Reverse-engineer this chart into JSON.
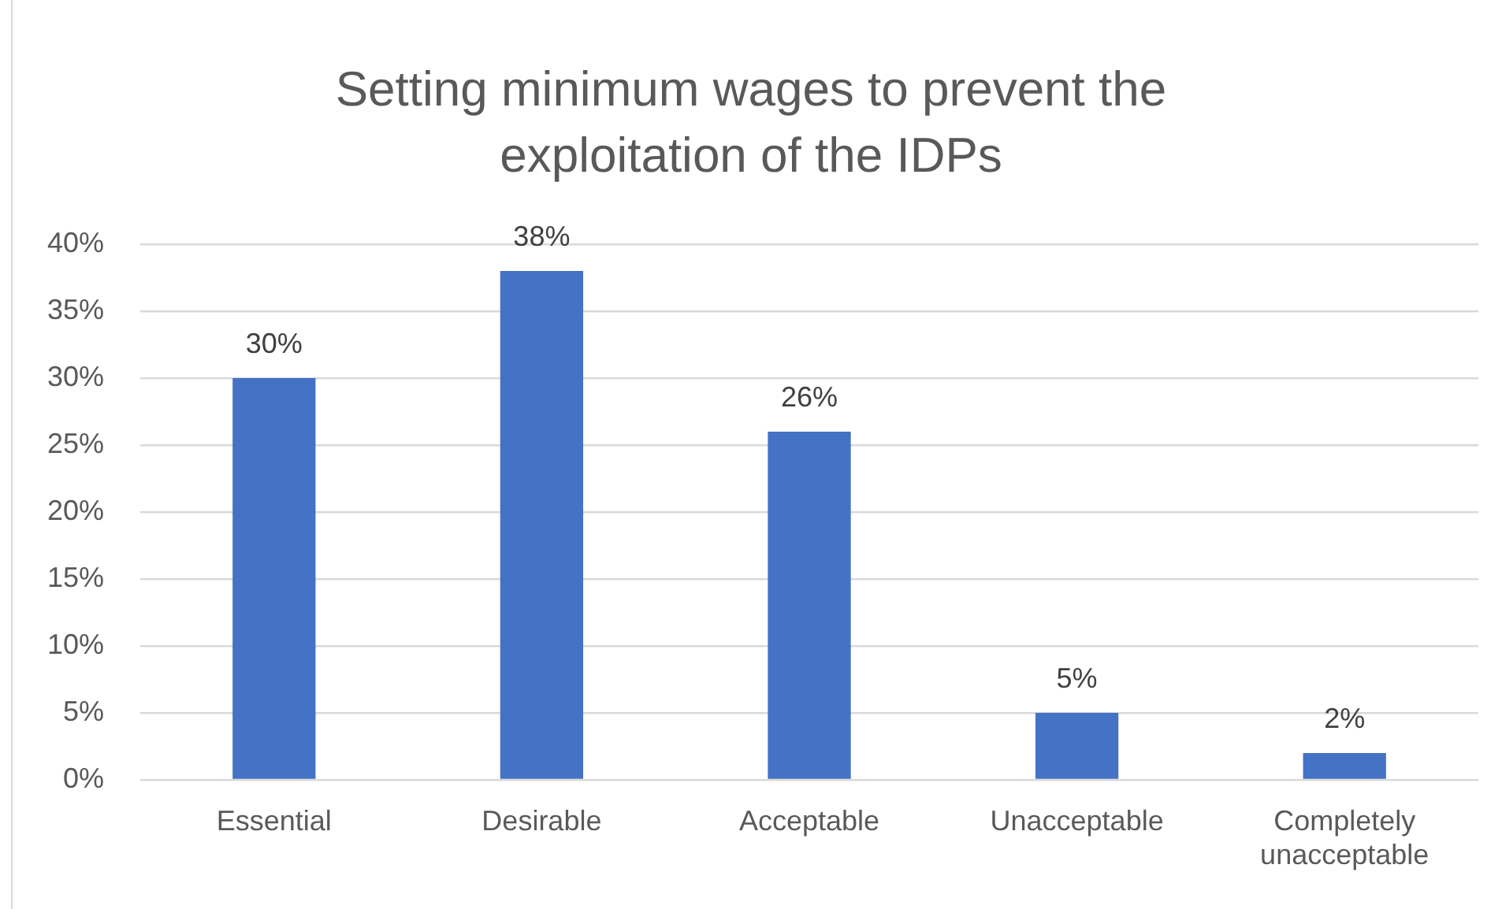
{
  "chart_data": {
    "type": "bar",
    "title": "Setting minimum wages to prevent the exploitation of the IDPs",
    "categories": [
      "Essential",
      "Desirable",
      "Acceptable",
      "Unacceptable",
      "Completely unacceptable"
    ],
    "values": [
      30,
      38,
      26,
      5,
      2
    ],
    "value_labels": [
      "30%",
      "38%",
      "26%",
      "5%",
      "2%"
    ],
    "color": "#4472c4",
    "ylim": [
      0,
      40
    ],
    "yticks": [
      {
        "value": 0,
        "label": "0%"
      },
      {
        "value": 5,
        "label": "5%"
      },
      {
        "value": 10,
        "label": "10%"
      },
      {
        "value": 15,
        "label": "15%"
      },
      {
        "value": 20,
        "label": "20%"
      },
      {
        "value": 25,
        "label": "25%"
      },
      {
        "value": 30,
        "label": "30%"
      },
      {
        "value": 35,
        "label": "35%"
      },
      {
        "value": 40,
        "label": "40%"
      }
    ],
    "grid": "y"
  }
}
